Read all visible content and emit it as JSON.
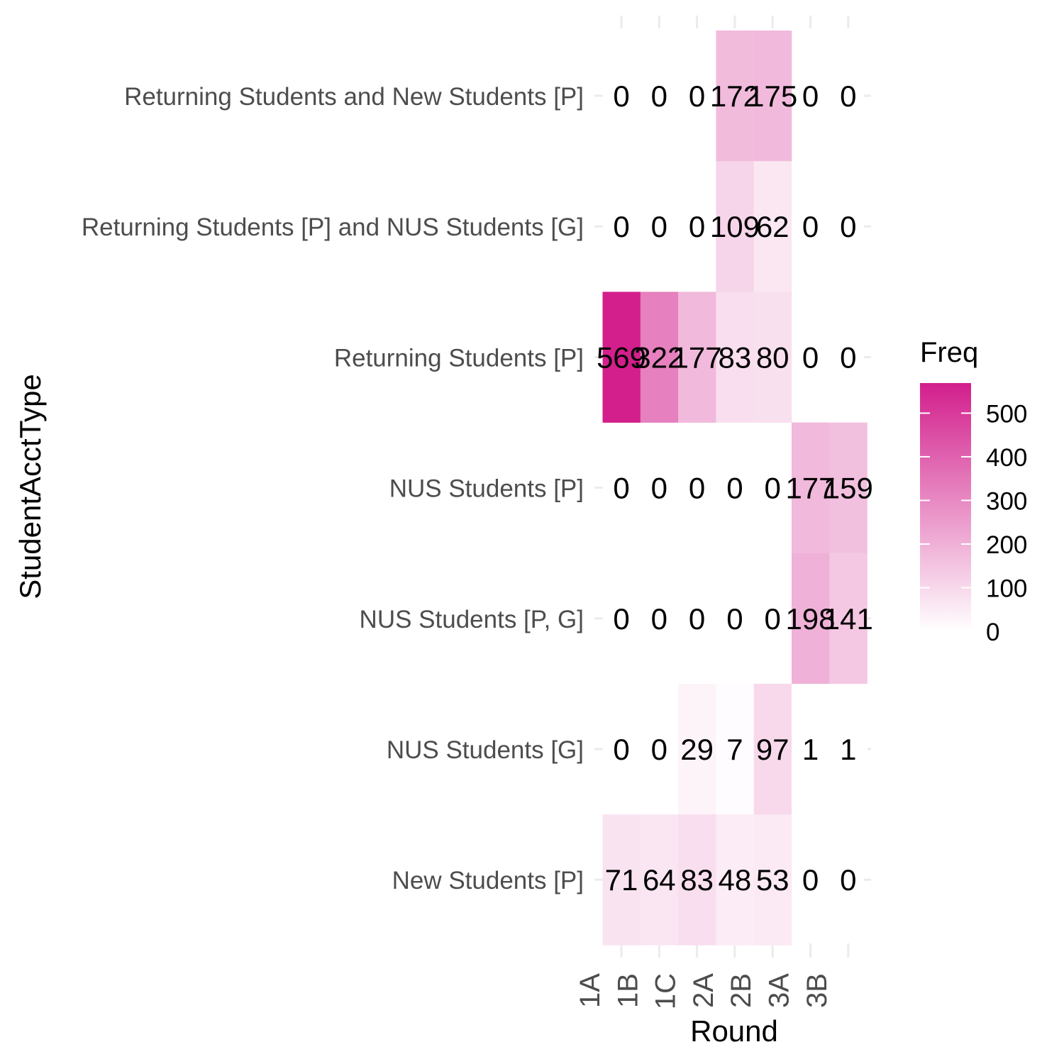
{
  "chart_data": {
    "type": "heatmap",
    "title": "",
    "xlabel": "Round",
    "ylabel": "StudentAcctType",
    "x_categories": [
      "1A",
      "1B",
      "1C",
      "2A",
      "2B",
      "3A",
      "3B"
    ],
    "y_categories": [
      "Returning Students and New Students [P]",
      "Returning Students [P] and NUS Students [G]",
      "Returning Students [P]",
      "NUS Students [P]",
      "NUS Students [P, G]",
      "NUS Students [G]",
      "New Students [P]"
    ],
    "values": [
      [
        0,
        0,
        0,
        172,
        175,
        0,
        0
      ],
      [
        0,
        0,
        0,
        109,
        62,
        0,
        0
      ],
      [
        569,
        322,
        177,
        83,
        80,
        0,
        0
      ],
      [
        0,
        0,
        0,
        0,
        0,
        177,
        159
      ],
      [
        0,
        0,
        0,
        0,
        0,
        198,
        141
      ],
      [
        0,
        0,
        29,
        7,
        97,
        1,
        1
      ],
      [
        71,
        64,
        83,
        48,
        53,
        0,
        0
      ]
    ],
    "missing_tiles": [
      [
        0,
        0
      ],
      [
        0,
        1
      ],
      [
        0,
        2
      ],
      [
        0,
        5
      ],
      [
        0,
        6
      ],
      [
        1,
        0
      ],
      [
        1,
        1
      ],
      [
        1,
        2
      ],
      [
        1,
        5
      ],
      [
        1,
        6
      ],
      [
        2,
        5
      ],
      [
        2,
        6
      ],
      [
        3,
        0
      ],
      [
        3,
        1
      ],
      [
        3,
        2
      ],
      [
        3,
        3
      ],
      [
        3,
        4
      ],
      [
        4,
        0
      ],
      [
        4,
        1
      ],
      [
        4,
        2
      ],
      [
        4,
        3
      ],
      [
        4,
        4
      ],
      [
        5,
        0
      ],
      [
        5,
        1
      ],
      [
        6,
        5
      ],
      [
        6,
        6
      ]
    ],
    "legend": {
      "title": "Freq",
      "ticks": [
        0,
        100,
        200,
        300,
        400,
        500
      ],
      "range": [
        0,
        569
      ],
      "low_color": "#ffffff",
      "high_color": "#d21f8c",
      "placement": "right"
    },
    "grid": false
  }
}
